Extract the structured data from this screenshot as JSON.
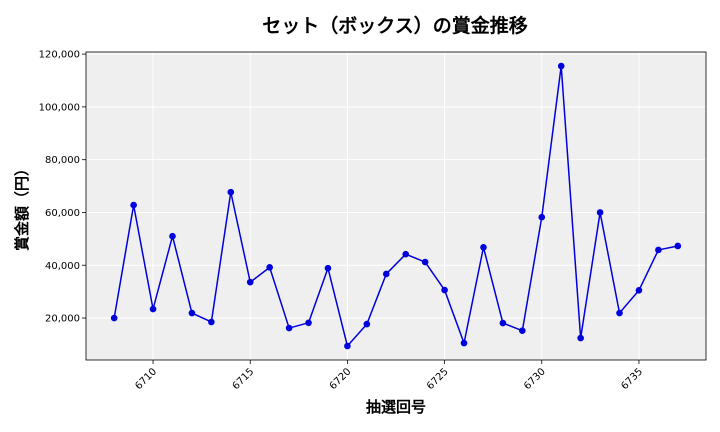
{
  "chart_data": {
    "type": "line",
    "title": "セット（ボックス）の賞金推移",
    "xlabel": "抽選回号",
    "ylabel": "賞金額（円）",
    "x": [
      6708,
      6709,
      6710,
      6711,
      6712,
      6713,
      6714,
      6715,
      6716,
      6717,
      6718,
      6719,
      6720,
      6721,
      6722,
      6723,
      6724,
      6725,
      6726,
      6727,
      6728,
      6729,
      6730,
      6731,
      6732,
      6733,
      6734,
      6735,
      6736,
      6737
    ],
    "series": [
      {
        "name": "",
        "color": "#0000dd",
        "values": [
          20000,
          62800,
          23400,
          51000,
          21900,
          18500,
          67700,
          33600,
          39200,
          16200,
          18200,
          38900,
          9400,
          17700,
          36700,
          44200,
          41200,
          30600,
          10500,
          46800,
          18100,
          15200,
          58200,
          115500,
          12400,
          60000,
          21900,
          30500,
          45800,
          47300
        ]
      }
    ],
    "x_ticks": [
      6710,
      6715,
      6720,
      6725,
      6730,
      6735
    ],
    "x_tick_labels": [
      "6710",
      "6715",
      "6720",
      "6725",
      "6730",
      "6735"
    ],
    "y_ticks": [
      20000,
      40000,
      60000,
      80000,
      100000,
      120000
    ],
    "y_tick_labels": [
      "20,000",
      "40,000",
      "60,000",
      "80,000",
      "100,000",
      "120,000"
    ],
    "xlim": [
      6706.55,
      6738.45
    ],
    "ylim": [
      4100,
      120800
    ],
    "grid": true,
    "plot_background": "#efefef",
    "grid_color": "#ffffff",
    "marker": "circle"
  }
}
